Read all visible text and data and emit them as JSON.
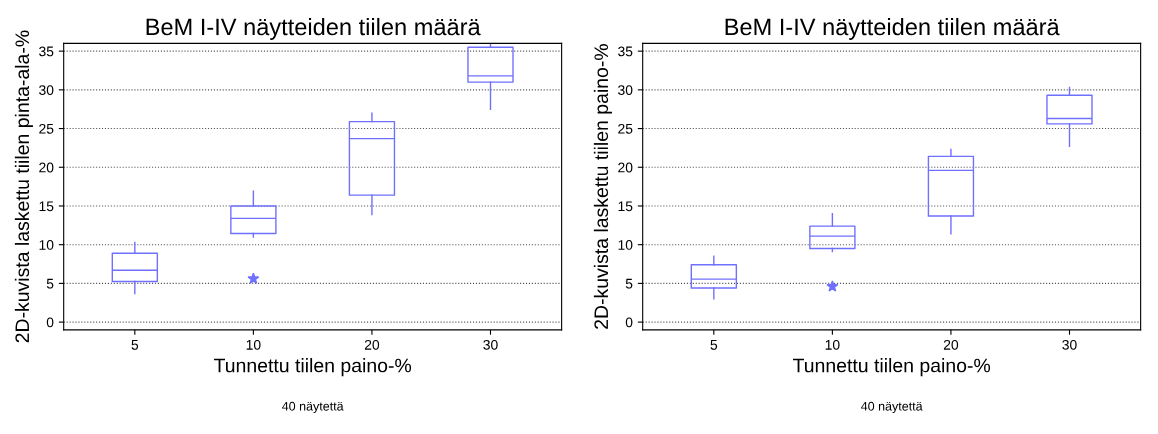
{
  "chart_data": [
    {
      "type": "box",
      "title": "BeM I-IV näytteiden tiilen määrä",
      "xlabel": "Tunnettu tiilen paino-%",
      "ylabel": "2D-kuvista laskettu tiilen pinta-ala-%",
      "annotations": [
        "40 näytettä"
      ],
      "categories": [
        "5",
        "10",
        "20",
        "30"
      ],
      "color": "#7070ff",
      "ylim": [
        -1,
        36
      ],
      "yticks": [
        0,
        5,
        10,
        15,
        20,
        25,
        30,
        35
      ],
      "grid": "y",
      "marker": "star",
      "boxes": [
        {
          "low": 3.7,
          "q1": 5.25,
          "median": 6.7,
          "q3": 8.9,
          "high": 10.3
        },
        {
          "low": 11.0,
          "q1": 11.45,
          "median": 13.4,
          "q3": 15.0,
          "high": 16.9,
          "outliers": [
            5.6
          ]
        },
        {
          "low": 13.9,
          "q1": 16.4,
          "median": 23.7,
          "q3": 25.9,
          "high": 27.0
        },
        {
          "low": 27.5,
          "q1": 31.0,
          "median": 31.8,
          "q3": 35.5,
          "high": 35.9
        }
      ]
    },
    {
      "type": "box",
      "title": "BeM I-IV näytteiden tiilen määrä",
      "xlabel": "Tunnettu tiilen paino-%",
      "ylabel": "2D-kuvista laskettu tiilen paino-%",
      "annotations": [
        "40 näytettä"
      ],
      "categories": [
        "5",
        "10",
        "20",
        "30"
      ],
      "color": "#7070ff",
      "ylim": [
        -1,
        36
      ],
      "yticks": [
        0,
        5,
        10,
        15,
        20,
        25,
        30,
        35
      ],
      "grid": "y",
      "marker": "star",
      "boxes": [
        {
          "low": 3.0,
          "q1": 4.4,
          "median": 5.55,
          "q3": 7.4,
          "high": 8.5
        },
        {
          "low": 9.1,
          "q1": 9.5,
          "median": 11.1,
          "q3": 12.4,
          "high": 14.0,
          "outliers": [
            4.6
          ]
        },
        {
          "low": 11.4,
          "q1": 13.7,
          "median": 19.6,
          "q3": 21.4,
          "high": 22.3
        },
        {
          "low": 22.7,
          "q1": 25.6,
          "median": 26.3,
          "q3": 29.3,
          "high": 30.3
        }
      ]
    }
  ]
}
